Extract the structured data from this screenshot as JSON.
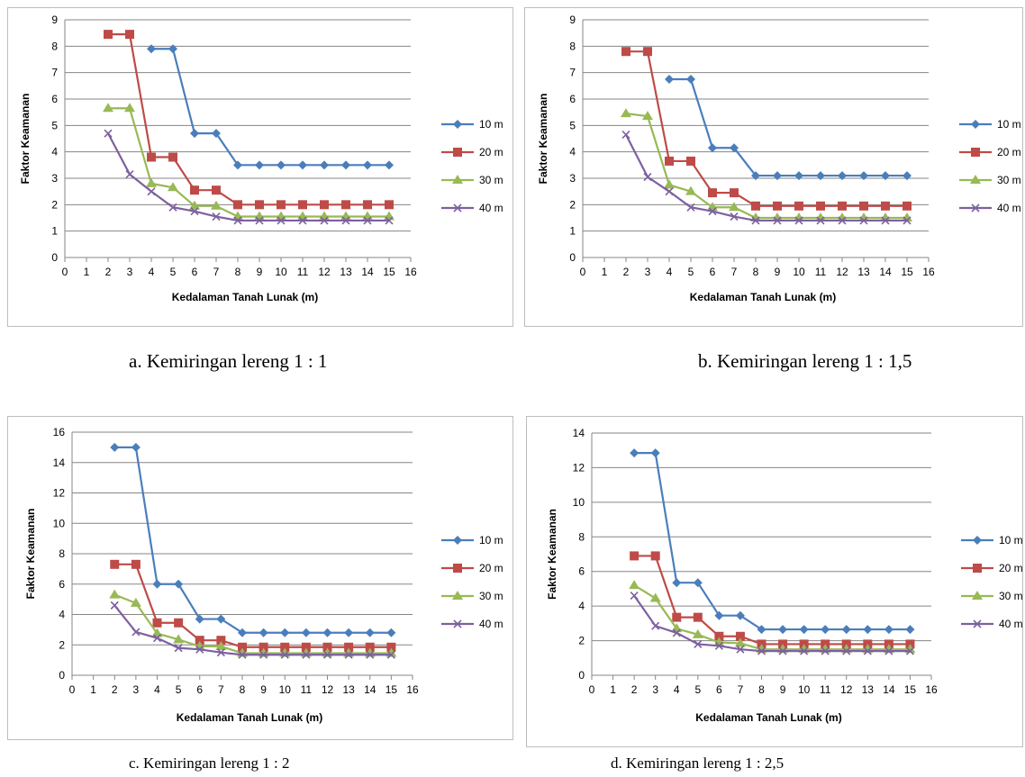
{
  "chart_data": [
    {
      "type": "line",
      "panel_label": "a. Kemiringan lereng 1 : 1",
      "xlabel": "Kedalaman Tanah Lunak (m)",
      "ylabel": "Faktor Keamanan",
      "xlim": [
        0,
        16
      ],
      "ylim": [
        0,
        9
      ],
      "xticks": [
        "0",
        "1",
        "2",
        "3",
        "4",
        "5",
        "6",
        "7",
        "8",
        "9",
        "10",
        "11",
        "12",
        "13",
        "14",
        "15",
        "16"
      ],
      "yticks": [
        "0",
        "1",
        "2",
        "3",
        "4",
        "5",
        "6",
        "7",
        "8",
        "9"
      ],
      "grid": "horizontal",
      "legend": "right",
      "x": [
        2,
        3,
        4,
        5,
        6,
        7,
        8,
        9,
        10,
        11,
        12,
        13,
        14,
        15
      ],
      "series": [
        {
          "name": "10 m",
          "color": "#4a7ebb",
          "marker": "diamond",
          "x": [
            4,
            5,
            6,
            7,
            8,
            9,
            10,
            11,
            12,
            13,
            14,
            15
          ],
          "values": [
            7.9,
            7.9,
            4.7,
            4.7,
            3.5,
            3.5,
            3.5,
            3.5,
            3.5,
            3.5,
            3.5,
            3.5
          ]
        },
        {
          "name": "20 m",
          "color": "#be4b48",
          "marker": "square",
          "x": [
            2,
            3,
            4,
            5,
            6,
            7,
            8,
            9,
            10,
            11,
            12,
            13,
            14,
            15
          ],
          "values": [
            8.45,
            8.45,
            3.8,
            3.8,
            2.55,
            2.55,
            2.0,
            2.0,
            2.0,
            2.0,
            2.0,
            2.0,
            2.0,
            2.0
          ]
        },
        {
          "name": "30 m",
          "color": "#98b954",
          "marker": "triangle",
          "x": [
            2,
            3,
            4,
            5,
            6,
            7,
            8,
            9,
            10,
            11,
            12,
            13,
            14,
            15
          ],
          "values": [
            5.65,
            5.65,
            2.8,
            2.65,
            1.95,
            1.95,
            1.55,
            1.55,
            1.55,
            1.55,
            1.55,
            1.55,
            1.55,
            1.55
          ]
        },
        {
          "name": "40 m",
          "color": "#7d60a0",
          "marker": "x",
          "x": [
            2,
            3,
            4,
            5,
            6,
            7,
            8,
            9,
            10,
            11,
            12,
            13,
            14,
            15
          ],
          "values": [
            4.7,
            3.15,
            2.5,
            1.9,
            1.75,
            1.55,
            1.4,
            1.4,
            1.4,
            1.4,
            1.4,
            1.4,
            1.4,
            1.4
          ]
        }
      ]
    },
    {
      "type": "line",
      "panel_label": "b. Kemiringan lereng 1 : 1,5",
      "xlabel": "Kedalaman Tanah Lunak (m)",
      "ylabel": "Faktor Keamanan",
      "xlim": [
        0,
        16
      ],
      "ylim": [
        0,
        9
      ],
      "xticks": [
        "0",
        "1",
        "2",
        "3",
        "4",
        "5",
        "6",
        "7",
        "8",
        "9",
        "10",
        "11",
        "12",
        "13",
        "14",
        "15",
        "16"
      ],
      "yticks": [
        "0",
        "1",
        "2",
        "3",
        "4",
        "5",
        "6",
        "7",
        "8",
        "9"
      ],
      "grid": "horizontal",
      "legend": "right",
      "series": [
        {
          "name": "10 m",
          "color": "#4a7ebb",
          "marker": "diamond",
          "x": [
            4,
            5,
            6,
            7,
            8,
            9,
            10,
            11,
            12,
            13,
            14,
            15
          ],
          "values": [
            6.75,
            6.75,
            4.15,
            4.15,
            3.1,
            3.1,
            3.1,
            3.1,
            3.1,
            3.1,
            3.1,
            3.1
          ]
        },
        {
          "name": "20 m",
          "color": "#be4b48",
          "marker": "square",
          "x": [
            2,
            3,
            4,
            5,
            6,
            7,
            8,
            9,
            10,
            11,
            12,
            13,
            14,
            15
          ],
          "values": [
            7.8,
            7.8,
            3.65,
            3.65,
            2.45,
            2.45,
            1.95,
            1.95,
            1.95,
            1.95,
            1.95,
            1.95,
            1.95,
            1.95
          ]
        },
        {
          "name": "30 m",
          "color": "#98b954",
          "marker": "triangle",
          "x": [
            2,
            3,
            4,
            5,
            6,
            7,
            8,
            9,
            10,
            11,
            12,
            13,
            14,
            15
          ],
          "values": [
            5.45,
            5.35,
            2.75,
            2.5,
            1.9,
            1.9,
            1.5,
            1.5,
            1.5,
            1.5,
            1.5,
            1.5,
            1.5,
            1.5
          ]
        },
        {
          "name": "40 m",
          "color": "#7d60a0",
          "marker": "x",
          "x": [
            2,
            3,
            4,
            5,
            6,
            7,
            8,
            9,
            10,
            11,
            12,
            13,
            14,
            15
          ],
          "values": [
            4.65,
            3.05,
            2.5,
            1.9,
            1.75,
            1.55,
            1.4,
            1.4,
            1.4,
            1.4,
            1.4,
            1.4,
            1.4,
            1.4
          ]
        }
      ]
    },
    {
      "type": "line",
      "panel_label": "c. Kemiringan lereng 1 : 2",
      "xlabel": "Kedalaman Tanah Lunak (m)",
      "ylabel": "Faktor Keamanan",
      "xlim": [
        0,
        16
      ],
      "ylim": [
        0,
        16
      ],
      "xticks": [
        "0",
        "1",
        "2",
        "3",
        "4",
        "5",
        "6",
        "7",
        "8",
        "9",
        "10",
        "11",
        "12",
        "13",
        "14",
        "15",
        "16"
      ],
      "yticks": [
        "0",
        "2",
        "4",
        "6",
        "8",
        "10",
        "12",
        "14",
        "16"
      ],
      "grid": "horizontal",
      "legend": "right",
      "series": [
        {
          "name": "10 m",
          "color": "#4a7ebb",
          "marker": "diamond",
          "x": [
            2,
            3,
            4,
            5,
            6,
            7,
            8,
            9,
            10,
            11,
            12,
            13,
            14,
            15
          ],
          "values": [
            15.0,
            15.0,
            6.0,
            6.0,
            3.7,
            3.7,
            2.8,
            2.8,
            2.8,
            2.8,
            2.8,
            2.8,
            2.8,
            2.8
          ]
        },
        {
          "name": "20 m",
          "color": "#be4b48",
          "marker": "square",
          "x": [
            2,
            3,
            4,
            5,
            6,
            7,
            8,
            9,
            10,
            11,
            12,
            13,
            14,
            15
          ],
          "values": [
            7.3,
            7.3,
            3.45,
            3.45,
            2.3,
            2.3,
            1.85,
            1.85,
            1.85,
            1.85,
            1.85,
            1.85,
            1.85,
            1.85
          ]
        },
        {
          "name": "30 m",
          "color": "#98b954",
          "marker": "triangle",
          "x": [
            2,
            3,
            4,
            5,
            6,
            7,
            8,
            9,
            10,
            11,
            12,
            13,
            14,
            15
          ],
          "values": [
            5.3,
            4.75,
            2.75,
            2.35,
            1.9,
            1.9,
            1.45,
            1.45,
            1.45,
            1.45,
            1.45,
            1.45,
            1.45,
            1.45
          ]
        },
        {
          "name": "40 m",
          "color": "#7d60a0",
          "marker": "x",
          "x": [
            2,
            3,
            4,
            5,
            6,
            7,
            8,
            9,
            10,
            11,
            12,
            13,
            14,
            15
          ],
          "values": [
            4.6,
            2.85,
            2.45,
            1.8,
            1.7,
            1.5,
            1.35,
            1.35,
            1.35,
            1.35,
            1.35,
            1.35,
            1.35,
            1.35
          ]
        }
      ]
    },
    {
      "type": "line",
      "panel_label": "d. Kemiringan lereng 1 : 2,5",
      "xlabel": "Kedalaman Tanah Lunak (m)",
      "ylabel": "Faktor Keamanan",
      "xlim": [
        0,
        16
      ],
      "ylim": [
        0,
        14
      ],
      "xticks": [
        "0",
        "1",
        "2",
        "3",
        "4",
        "5",
        "6",
        "7",
        "8",
        "9",
        "10",
        "11",
        "12",
        "13",
        "14",
        "15",
        "16"
      ],
      "yticks": [
        "0",
        "2",
        "4",
        "6",
        "8",
        "10",
        "12",
        "14"
      ],
      "grid": "horizontal",
      "legend": "right",
      "series": [
        {
          "name": "10 m",
          "color": "#4a7ebb",
          "marker": "diamond",
          "x": [
            2,
            3,
            4,
            5,
            6,
            7,
            8,
            9,
            10,
            11,
            12,
            13,
            14,
            15
          ],
          "values": [
            12.85,
            12.85,
            5.35,
            5.35,
            3.45,
            3.45,
            2.65,
            2.65,
            2.65,
            2.65,
            2.65,
            2.65,
            2.65,
            2.65
          ]
        },
        {
          "name": "20 m",
          "color": "#be4b48",
          "marker": "square",
          "x": [
            2,
            3,
            4,
            5,
            6,
            7,
            8,
            9,
            10,
            11,
            12,
            13,
            14,
            15
          ],
          "values": [
            6.9,
            6.9,
            3.35,
            3.35,
            2.25,
            2.25,
            1.8,
            1.8,
            1.8,
            1.8,
            1.8,
            1.8,
            1.8,
            1.8
          ]
        },
        {
          "name": "30 m",
          "color": "#98b954",
          "marker": "triangle",
          "x": [
            2,
            3,
            4,
            5,
            6,
            7,
            8,
            9,
            10,
            11,
            12,
            13,
            14,
            15
          ],
          "values": [
            5.2,
            4.45,
            2.7,
            2.35,
            1.9,
            1.85,
            1.5,
            1.5,
            1.5,
            1.5,
            1.5,
            1.5,
            1.5,
            1.5
          ]
        },
        {
          "name": "40 m",
          "color": "#7d60a0",
          "marker": "x",
          "x": [
            2,
            3,
            4,
            5,
            6,
            7,
            8,
            9,
            10,
            11,
            12,
            13,
            14,
            15
          ],
          "values": [
            4.6,
            2.85,
            2.45,
            1.8,
            1.7,
            1.5,
            1.4,
            1.4,
            1.4,
            1.4,
            1.4,
            1.4,
            1.4,
            1.4
          ]
        }
      ]
    }
  ]
}
